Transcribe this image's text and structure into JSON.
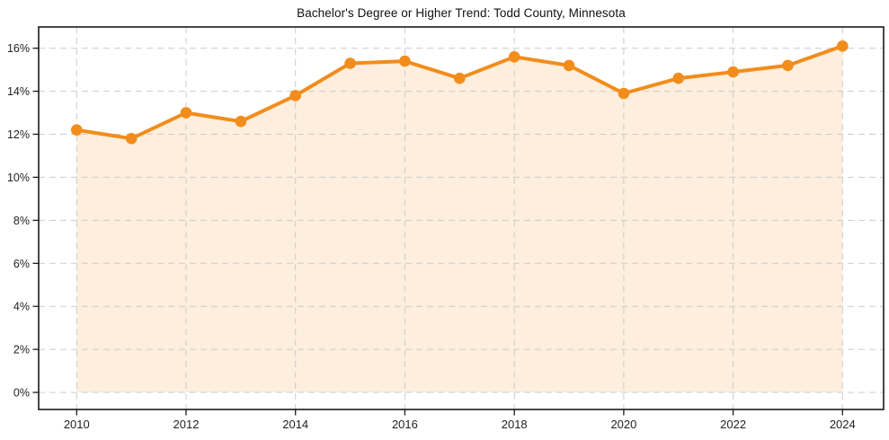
{
  "title": "Bachelor's Degree or Higher Trend: Todd County, Minnesota",
  "colors": {
    "line": "#f28c1b",
    "marker": "#f28c1b",
    "area_fill": "#fdeedd",
    "grid": "#cccccc",
    "spine": "#1a1a1a",
    "tick": "#1a1a1a",
    "tick_label": "#222222",
    "title": "#111111",
    "background": "#ffffff"
  },
  "chart_data": {
    "type": "area",
    "title": "Bachelor's Degree or Higher Trend: Todd County, Minnesota",
    "xlabel": "",
    "ylabel": "",
    "x": [
      2010,
      2011,
      2012,
      2013,
      2014,
      2015,
      2016,
      2017,
      2018,
      2019,
      2020,
      2021,
      2022,
      2023,
      2024
    ],
    "series": [
      {
        "name": "Bachelor's Degree or Higher",
        "values": [
          12.2,
          11.8,
          13.0,
          12.6,
          13.8,
          15.3,
          15.4,
          14.6,
          15.6,
          15.2,
          13.9,
          14.6,
          14.9,
          15.2,
          16.1
        ]
      }
    ],
    "xticks": [
      2010,
      2012,
      2014,
      2016,
      2018,
      2020,
      2022,
      2024
    ],
    "yticks": [
      0,
      2,
      4,
      6,
      8,
      10,
      12,
      14,
      16
    ],
    "ytick_suffix": "%",
    "ylim": [
      -0.8,
      17.0
    ],
    "xlim": [
      2009.3,
      2024.75
    ],
    "grid": true,
    "grid_style": "dashed",
    "legend": false,
    "marker": "circle",
    "fill_to": 0
  }
}
